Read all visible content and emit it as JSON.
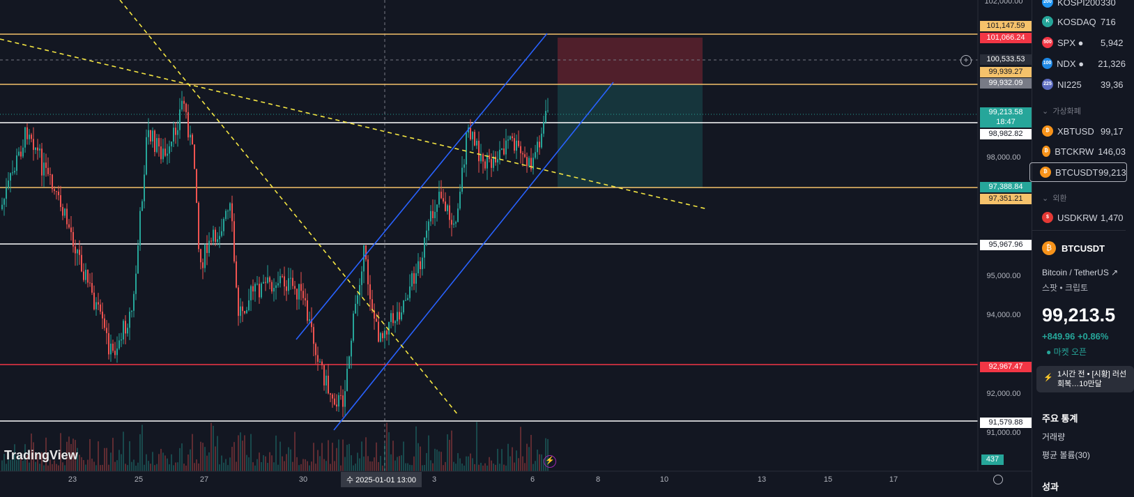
{
  "chart": {
    "watermark": "TradingView",
    "crosshair_date": "수 2025-01-01   13:00",
    "volume_label": "437",
    "price_ticks": [
      "102,000.00",
      "98,000.00",
      "95,000.00",
      "94,000.00",
      "92,000.00",
      "91,000.00"
    ],
    "x_ticks": [
      "23",
      "25",
      "27",
      "30",
      "3",
      "6",
      "8",
      "10",
      "13",
      "15",
      "17"
    ],
    "price_labels": {
      "p101147": "101,147.59",
      "p101066": "101,066.24",
      "p100533": "100,533.53",
      "p99939": "99,939.27",
      "p99932": "99,932.09",
      "p99213": "99,213.58",
      "countdown": "18:47",
      "p98982": "98,982.82",
      "p97388": "97,388.84",
      "p97351": "97,351.21",
      "p95967": "95,967.96",
      "p92967": "92,967.47",
      "p91579": "91,579.88"
    },
    "colors": {
      "up": "#26a69a",
      "down": "#ef5350",
      "bg": "#131722",
      "orange": "#f5c26b",
      "white": "#ffffff",
      "red": "#f23645",
      "blue": "#2962ff",
      "yellow": "#f5e642"
    }
  },
  "watchlist": {
    "items": [
      {
        "sym": "KOSPI200",
        "val": "330",
        "icon": "200",
        "color": "#2196f3"
      },
      {
        "sym": "KOSDAQ",
        "val": "716",
        "icon": "K",
        "color": "#26a69a"
      },
      {
        "sym": "SPX ●",
        "val": "5,942",
        "icon": "500",
        "color": "#f23645"
      },
      {
        "sym": "NDX ●",
        "val": "21,326",
        "icon": "100",
        "color": "#1e88e5"
      },
      {
        "sym": "NI225",
        "val": "39,36",
        "icon": "225",
        "color": "#5c6bc0"
      }
    ],
    "section_crypto": "가상화폐",
    "crypto": [
      {
        "sym": "XBTUSD",
        "val": "99,17",
        "icon": "₿",
        "color": "#f7931a"
      },
      {
        "sym": "BTCKRW",
        "val": "146,03",
        "icon": "₿",
        "color": "#f7931a"
      },
      {
        "sym": "BTCUSDT",
        "val": "99,213",
        "icon": "₿",
        "color": "#f7931a"
      }
    ],
    "section_fx": "외환",
    "fx": [
      {
        "sym": "USDKRW",
        "val": "1,470",
        "icon": "$",
        "color": "#e53935"
      }
    ]
  },
  "details": {
    "symbol": "BTCUSDT",
    "name": "Bitcoin / TetherUS",
    "sub": "스팟 • 크립토",
    "price": "99,213.5",
    "change": "+849.96  +0.86%",
    "status": "● 마켓 오픈",
    "news": "1시간 전 • [시황] 러선 회복…10만달",
    "stats_title": "주요 통계",
    "volume": "거래량",
    "avg_volume": "평균 볼륨(30)",
    "performance": "성과"
  }
}
